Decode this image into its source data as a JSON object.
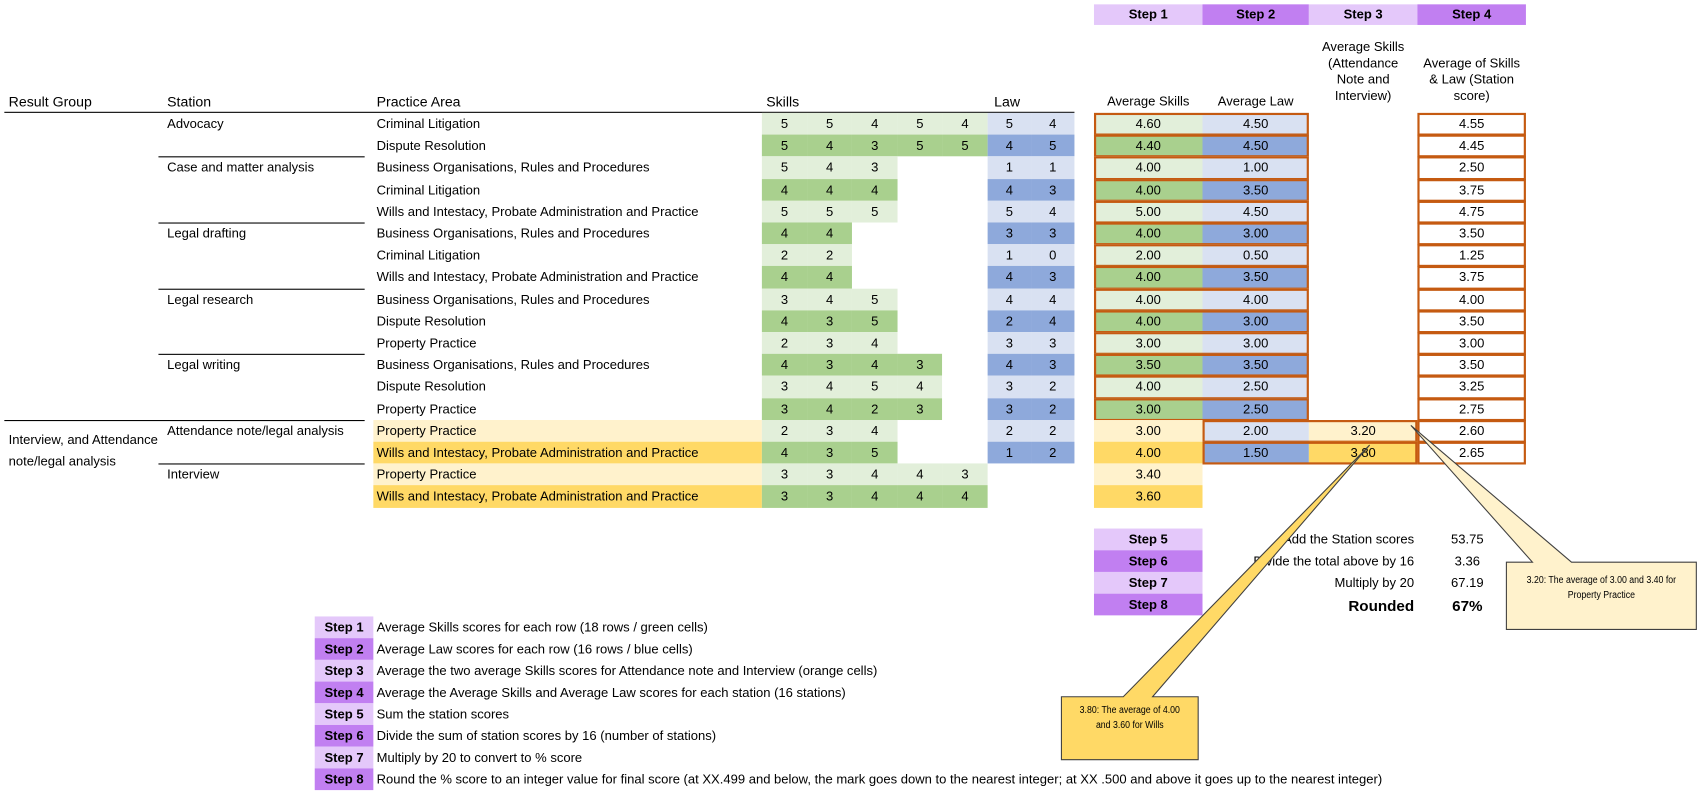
{
  "colors": {
    "skills_light": "#e2efda",
    "skills_dark": "#a9d08e",
    "law_light": "#d9e1f2",
    "law_dark": "#8ea9db",
    "yellow_light": "#fff2cc",
    "yellow_dark": "#ffd966",
    "step_light": "#e4c8fa",
    "step_dark": "#c17ff1",
    "border_orange": "#c55a11"
  },
  "step_headers": [
    "Step 1",
    "Step 2",
    "Step 3",
    "Step 4"
  ],
  "headers": {
    "result_group": "Result Group",
    "station": "Station",
    "practice_area": "Practice Area",
    "skills": "Skills",
    "law": "Law",
    "avg_skills": "Average Skills",
    "avg_law": "Average Law",
    "avg_attendance": [
      "Average Skills",
      "(Attendance",
      "Note and",
      "Interview)"
    ],
    "station_score": [
      "Average of Skills",
      "& Law (Station",
      "score)"
    ]
  },
  "rows": [
    {
      "result_group": "",
      "station": "Advocacy",
      "practice_area": "Criminal Litigation",
      "skills": [
        5,
        5,
        4,
        5,
        4
      ],
      "law": [
        5,
        4
      ],
      "avg_skills": "4.60",
      "avg_law": "4.50",
      "avg_attendance": "",
      "station_score": "4.55"
    },
    {
      "result_group": "",
      "station": "",
      "practice_area": "Dispute Resolution",
      "skills": [
        5,
        4,
        3,
        5,
        5
      ],
      "law": [
        4,
        5
      ],
      "avg_skills": "4.40",
      "avg_law": "4.50",
      "avg_attendance": "",
      "station_score": "4.45"
    },
    {
      "result_group": "",
      "station": "Case and matter analysis",
      "practice_area": "Business Organisations, Rules and Procedures",
      "skills": [
        5,
        4,
        3
      ],
      "law": [
        1,
        1
      ],
      "avg_skills": "4.00",
      "avg_law": "1.00",
      "avg_attendance": "",
      "station_score": "2.50"
    },
    {
      "result_group": "",
      "station": "",
      "practice_area": "Criminal Litigation",
      "skills": [
        4,
        4,
        4
      ],
      "law": [
        4,
        3
      ],
      "avg_skills": "4.00",
      "avg_law": "3.50",
      "avg_attendance": "",
      "station_score": "3.75"
    },
    {
      "result_group": "",
      "station": "",
      "practice_area": "Wills and Intestacy, Probate Administration and Practice",
      "skills": [
        5,
        5,
        5
      ],
      "law": [
        5,
        4
      ],
      "avg_skills": "5.00",
      "avg_law": "4.50",
      "avg_attendance": "",
      "station_score": "4.75"
    },
    {
      "result_group": "",
      "station": "Legal drafting",
      "practice_area": "Business Organisations, Rules and Procedures",
      "skills": [
        4,
        4
      ],
      "law": [
        3,
        3
      ],
      "avg_skills": "4.00",
      "avg_law": "3.00",
      "avg_attendance": "",
      "station_score": "3.50"
    },
    {
      "result_group": "",
      "station": "",
      "practice_area": "Criminal Litigation",
      "skills": [
        2,
        2
      ],
      "law": [
        1,
        0
      ],
      "avg_skills": "2.00",
      "avg_law": "0.50",
      "avg_attendance": "",
      "station_score": "1.25"
    },
    {
      "result_group": "",
      "station": "",
      "practice_area": "Wills and Intestacy, Probate Administration and Practice",
      "skills": [
        4,
        4
      ],
      "law": [
        4,
        3
      ],
      "avg_skills": "4.00",
      "avg_law": "3.50",
      "avg_attendance": "",
      "station_score": "3.75"
    },
    {
      "result_group": "",
      "station": "Legal research",
      "practice_area": "Business Organisations, Rules and Procedures",
      "skills": [
        3,
        4,
        5
      ],
      "law": [
        4,
        4
      ],
      "avg_skills": "4.00",
      "avg_law": "4.00",
      "avg_attendance": "",
      "station_score": "4.00"
    },
    {
      "result_group": "",
      "station": "",
      "practice_area": "Dispute Resolution",
      "skills": [
        4,
        3,
        5
      ],
      "law": [
        2,
        4
      ],
      "avg_skills": "4.00",
      "avg_law": "3.00",
      "avg_attendance": "",
      "station_score": "3.50"
    },
    {
      "result_group": "",
      "station": "",
      "practice_area": "Property Practice",
      "skills": [
        2,
        3,
        4
      ],
      "law": [
        3,
        3
      ],
      "avg_skills": "3.00",
      "avg_law": "3.00",
      "avg_attendance": "",
      "station_score": "3.00"
    },
    {
      "result_group": "",
      "station": "Legal writing",
      "practice_area": "Business Organisations, Rules and Procedures",
      "skills": [
        4,
        3,
        4,
        3
      ],
      "law": [
        4,
        3
      ],
      "avg_skills": "3.50",
      "avg_law": "3.50",
      "avg_attendance": "",
      "station_score": "3.50"
    },
    {
      "result_group": "",
      "station": "",
      "practice_area": "Dispute Resolution",
      "skills": [
        3,
        4,
        5,
        4
      ],
      "law": [
        3,
        2
      ],
      "avg_skills": "4.00",
      "avg_law": "2.50",
      "avg_attendance": "",
      "station_score": "3.25"
    },
    {
      "result_group": "",
      "station": "",
      "practice_area": "Property Practice",
      "skills": [
        3,
        4,
        2,
        3
      ],
      "law": [
        3,
        2
      ],
      "avg_skills": "3.00",
      "avg_law": "2.50",
      "avg_attendance": "",
      "station_score": "2.75"
    },
    {
      "result_group": "Interview, and Attendance note/legal analysis",
      "station": "Attendance note/legal analysis",
      "practice_area": "Property Practice",
      "skills": [
        2,
        3,
        4
      ],
      "law": [
        2,
        2
      ],
      "avg_skills": "3.00",
      "avg_law": "2.00",
      "avg_attendance": "3.20",
      "station_score": "2.60"
    },
    {
      "result_group": "",
      "station": "",
      "practice_area": "Wills and Intestacy, Probate Administration and Practice",
      "skills": [
        4,
        3,
        5
      ],
      "law": [
        1,
        2
      ],
      "avg_skills": "4.00",
      "avg_law": "1.50",
      "avg_attendance": "3.80",
      "station_score": "2.65"
    },
    {
      "result_group": "",
      "station": "Interview",
      "practice_area": "Property Practice",
      "skills": [
        3,
        3,
        4,
        4,
        3
      ],
      "law": [],
      "avg_skills": "3.40",
      "avg_law": "",
      "avg_attendance": "",
      "station_score": ""
    },
    {
      "result_group": "",
      "station": "",
      "practice_area": "Wills and Intestacy, Probate Administration and Practice",
      "skills": [
        3,
        3,
        4,
        4,
        4
      ],
      "law": [],
      "avg_skills": "3.60",
      "avg_law": "",
      "avg_attendance": "",
      "station_score": ""
    }
  ],
  "summary": [
    {
      "step": "Step 5",
      "label": "Add the Station scores",
      "value": "53.75"
    },
    {
      "step": "Step 6",
      "label": "Divide the total above by 16",
      "value": "3.36"
    },
    {
      "step": "Step 7",
      "label": "Multiply by 20",
      "value": "67.19"
    },
    {
      "step": "Step 8",
      "label": "Rounded",
      "value": "67%"
    }
  ],
  "legend": [
    {
      "step": "Step 1",
      "text": "Average Skills scores for each row (18 rows / green cells)"
    },
    {
      "step": "Step 2",
      "text": "Average Law scores for each row (16 rows / blue cells)"
    },
    {
      "step": "Step 3",
      "text": "Average the two average Skills scores for Attendance note and Interview (orange cells)"
    },
    {
      "step": "Step 4",
      "text": "Average the Average Skills and Average Law scores for each station (16 stations)"
    },
    {
      "step": "Step 5",
      "text": "Sum the station scores"
    },
    {
      "step": "Step 6",
      "text": "Divide the sum of station scores by 16 (number of stations)"
    },
    {
      "step": "Step 7",
      "text": "Multiply by 20 to convert to % score"
    },
    {
      "step": "Step 8",
      "text": "Round the % score to an integer value for final score (at XX.499 and below, the mark goes down to the nearest integer; at XX .500 and above it goes up to the nearest integer)"
    }
  ],
  "callouts": {
    "wills": "3.80: The average of 4.00 and 3.60 for Wills",
    "property": "3.20: The average of 3.00 and 3.40 for Property Practice"
  }
}
